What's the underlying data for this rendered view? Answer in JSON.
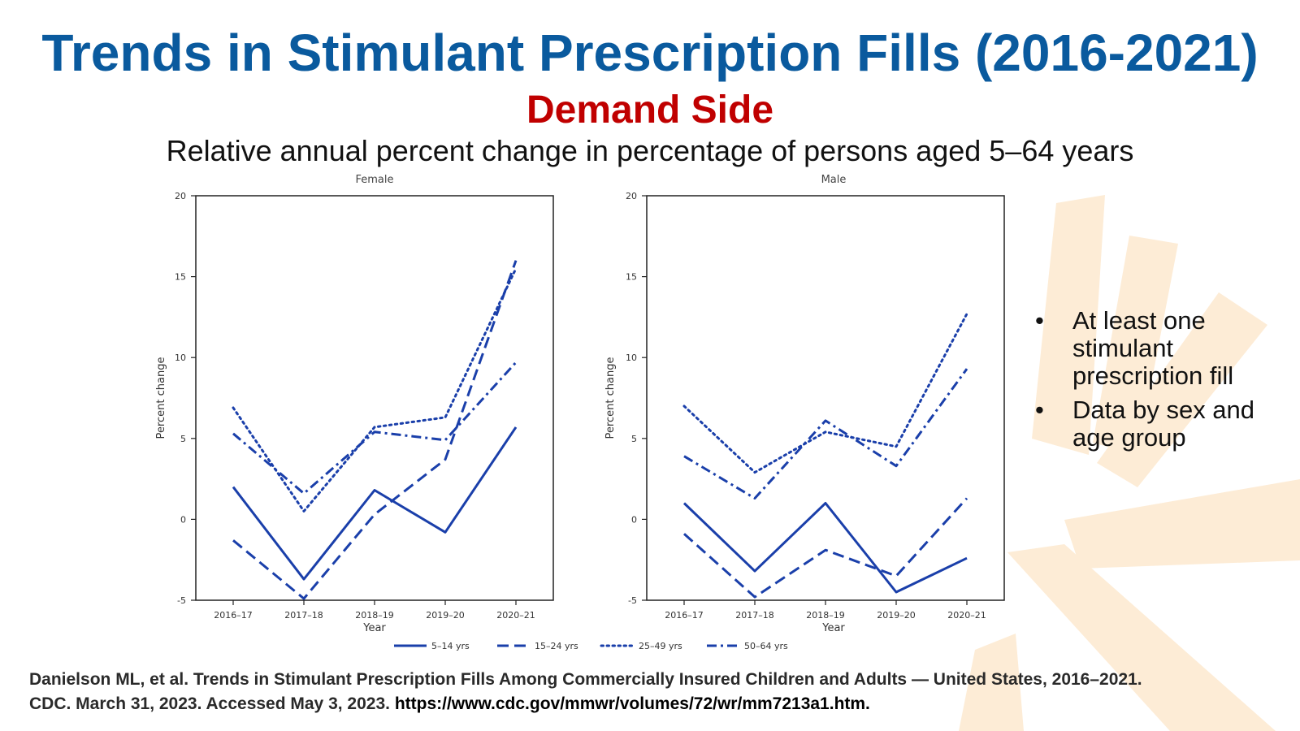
{
  "slide": {
    "title": "Trends in Stimulant Prescription Fills (2016-2021)",
    "subtitle": "Demand Side",
    "description": "Relative annual percent change in percentage of persons aged 5–64 years",
    "title_color": "#0a5a9e",
    "subtitle_color": "#c00000",
    "accent_bg_color": "#fde9cf"
  },
  "bullets": [
    "At least one stimulant prescription fill",
    "Data by sex and age group"
  ],
  "citation": {
    "line1": "Danielson ML, et al. Trends in Stimulant Prescription Fills Among Commercially Insured Children and Adults — United States, 2016–2021.",
    "line2": "CDC. March 31, 2023. Accessed May 3, 2023.",
    "url": "https://www.cdc.gov/mmwr/volumes/72/wr/mm7213a1.htm."
  },
  "chart_data": [
    {
      "type": "line",
      "title": "Female",
      "xlabel": "Year",
      "ylabel": "Percent change",
      "categories": [
        "2016–17",
        "2017–18",
        "2018–19",
        "2019–20",
        "2020–21"
      ],
      "ylim": [
        -5,
        20
      ],
      "yticks": [
        -5,
        0,
        5,
        10,
        15,
        20
      ],
      "line_color": "#1a3faa",
      "series": [
        {
          "name": "5–14 yrs",
          "style": "solid",
          "values": [
            2.0,
            -3.7,
            1.8,
            -0.8,
            5.7
          ]
        },
        {
          "name": "15–24 yrs",
          "style": "dash",
          "values": [
            -1.3,
            -4.9,
            0.3,
            3.7,
            16.0
          ]
        },
        {
          "name": "25–49 yrs",
          "style": "dot",
          "values": [
            6.9,
            0.5,
            5.7,
            6.3,
            15.5
          ]
        },
        {
          "name": "50–64 yrs",
          "style": "dashdot",
          "values": [
            5.3,
            1.6,
            5.4,
            4.9,
            9.7
          ]
        }
      ]
    },
    {
      "type": "line",
      "title": "Male",
      "xlabel": "Year",
      "ylabel": "Percent change",
      "categories": [
        "2016–17",
        "2017–18",
        "2018–19",
        "2019–20",
        "2020–21"
      ],
      "ylim": [
        -5,
        20
      ],
      "yticks": [
        -5,
        0,
        5,
        10,
        15,
        20
      ],
      "line_color": "#1a3faa",
      "series": [
        {
          "name": "5–14 yrs",
          "style": "solid",
          "values": [
            1.0,
            -3.2,
            1.0,
            -4.5,
            -2.4
          ]
        },
        {
          "name": "15–24 yrs",
          "style": "dash",
          "values": [
            -0.9,
            -4.8,
            -1.9,
            -3.5,
            1.3
          ]
        },
        {
          "name": "25–49 yrs",
          "style": "dot",
          "values": [
            7.0,
            2.9,
            5.4,
            4.5,
            12.7
          ]
        },
        {
          "name": "50–64 yrs",
          "style": "dashdot",
          "values": [
            3.9,
            1.3,
            6.1,
            3.3,
            9.3
          ]
        }
      ]
    }
  ]
}
